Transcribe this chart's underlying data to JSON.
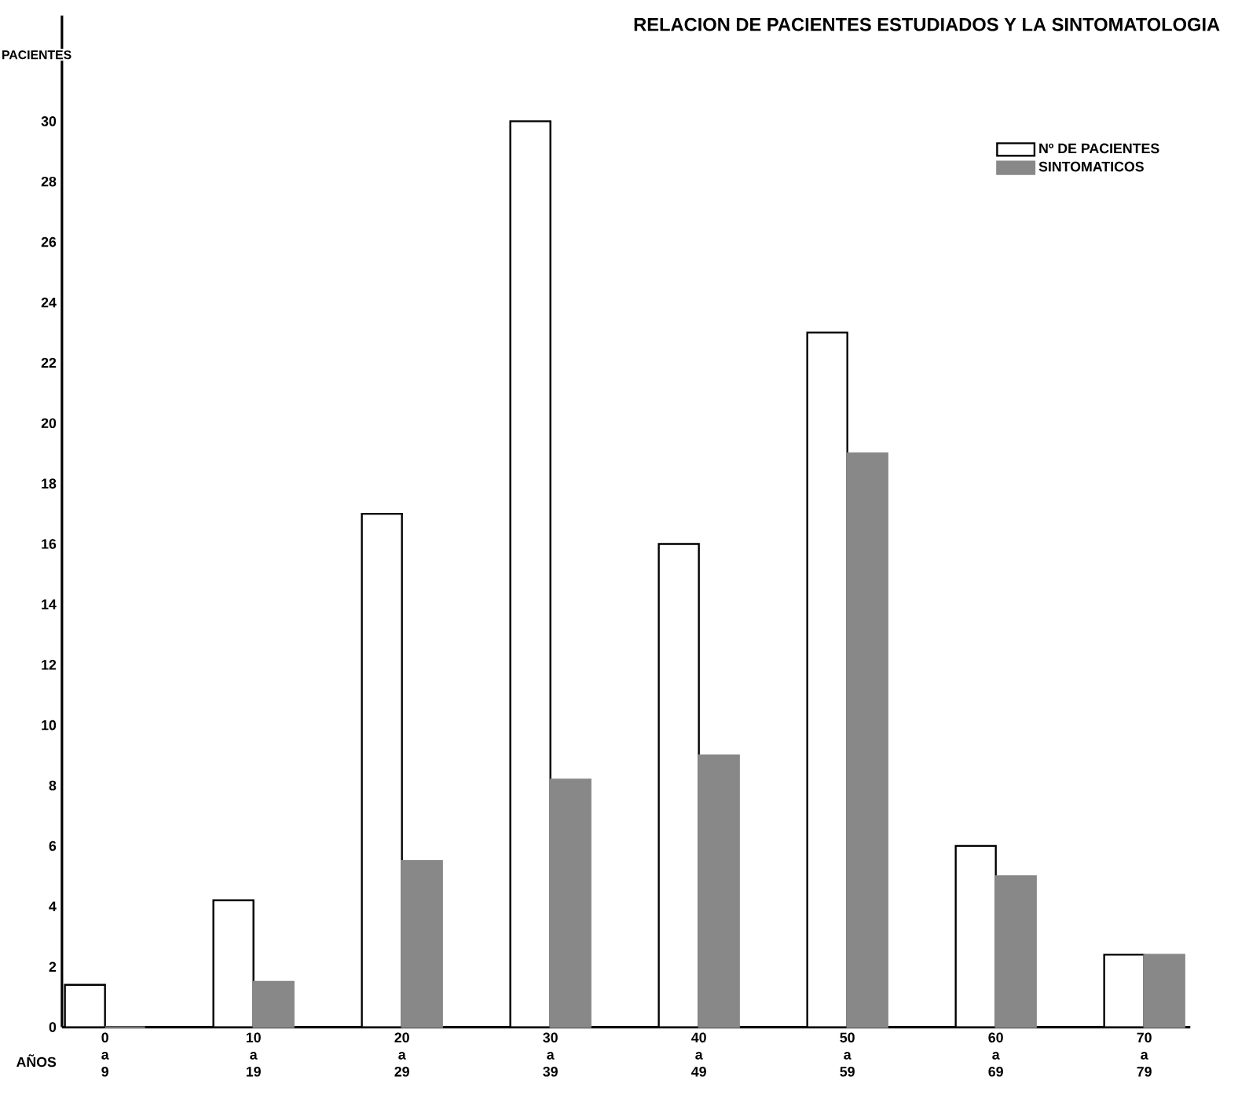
{
  "chart_data": {
    "type": "bar",
    "title": "RELACION DE PACIENTES ESTUDIADOS Y LA SINTOMATOLOGIA",
    "xlabel": "AÑOS",
    "ylabel": "PACIENTES",
    "categories": [
      "0 a 9",
      "10 a 19",
      "20 a 29",
      "30 a 39",
      "40 a 49",
      "50 a 59",
      "60 a 69",
      "70 a 79"
    ],
    "series": [
      {
        "name": "Nº DE PACIENTES",
        "color": "#ffffff",
        "values": [
          1.4,
          4.2,
          17,
          30,
          16,
          23,
          6,
          2.4
        ]
      },
      {
        "name": "SINTOMATICOS",
        "color": "#888888",
        "values": [
          0,
          1.5,
          5.5,
          8.2,
          9,
          19,
          5,
          2.4
        ]
      }
    ],
    "ylim": [
      0,
      33.5
    ],
    "yticks": [
      0,
      2,
      4,
      6,
      8,
      10,
      12,
      14,
      16,
      18,
      20,
      22,
      24,
      26,
      28,
      30
    ],
    "legend": "top right",
    "grid": false
  }
}
